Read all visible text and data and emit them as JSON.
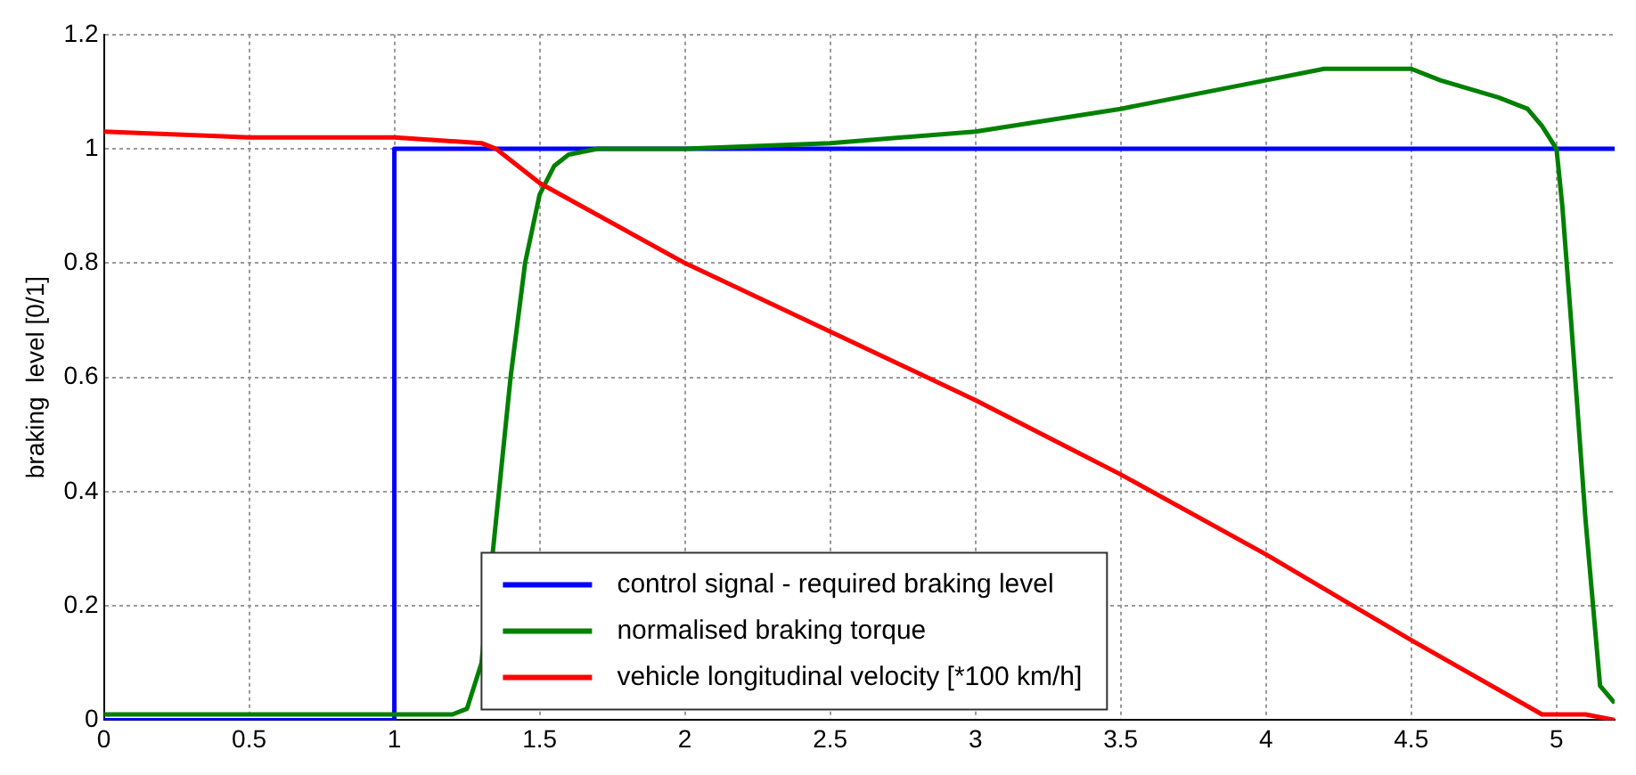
{
  "chart_data": {
    "type": "line",
    "ylabel": "braking  level [0/1]",
    "xlim": [
      0,
      5.2
    ],
    "xticks": [
      0,
      0.5,
      1,
      1.5,
      2,
      2.5,
      3,
      3.5,
      4,
      4.5,
      5
    ],
    "ylim": [
      0,
      1.2
    ],
    "yticks": [
      0,
      0.2,
      0.4,
      0.6,
      0.8,
      1,
      1.2
    ],
    "grid": true,
    "legend": "bottom",
    "line_style": "solid",
    "marker": "none",
    "series": [
      {
        "name": "control signal - required braking level",
        "color": "#0000ff",
        "type": "step",
        "x": [
          0,
          1,
          5.2
        ],
        "values": [
          0,
          1,
          1
        ]
      },
      {
        "name": "normalised braking torque",
        "color": "#008000",
        "x": [
          0,
          1.2,
          1.25,
          1.3,
          1.35,
          1.4,
          1.45,
          1.5,
          1.55,
          1.6,
          1.7,
          2,
          2.5,
          3,
          3.5,
          4,
          4.2,
          4.5,
          4.6,
          4.8,
          4.9,
          4.95,
          5,
          5.02,
          5.05,
          5.1,
          5.15,
          5.2
        ],
        "values": [
          0.01,
          0.01,
          0.02,
          0.1,
          0.35,
          0.6,
          0.8,
          0.92,
          0.97,
          0.99,
          1,
          1,
          1.01,
          1.03,
          1.07,
          1.12,
          1.14,
          1.14,
          1.12,
          1.09,
          1.07,
          1.04,
          1,
          0.9,
          0.7,
          0.35,
          0.06,
          0.03
        ]
      },
      {
        "name": "vehicle longitudinal velocity [*100 km/h]",
        "color": "#ff0000",
        "x": [
          0,
          0.5,
          1,
          1.3,
          1.35,
          1.5,
          2,
          2.5,
          3,
          3.5,
          4,
          4.5,
          4.95,
          5.1,
          5.2
        ],
        "values": [
          1.03,
          1.02,
          1.02,
          1.01,
          1,
          0.94,
          0.8,
          0.68,
          0.56,
          0.43,
          0.29,
          0.14,
          0.01,
          0.01,
          0
        ]
      }
    ]
  }
}
